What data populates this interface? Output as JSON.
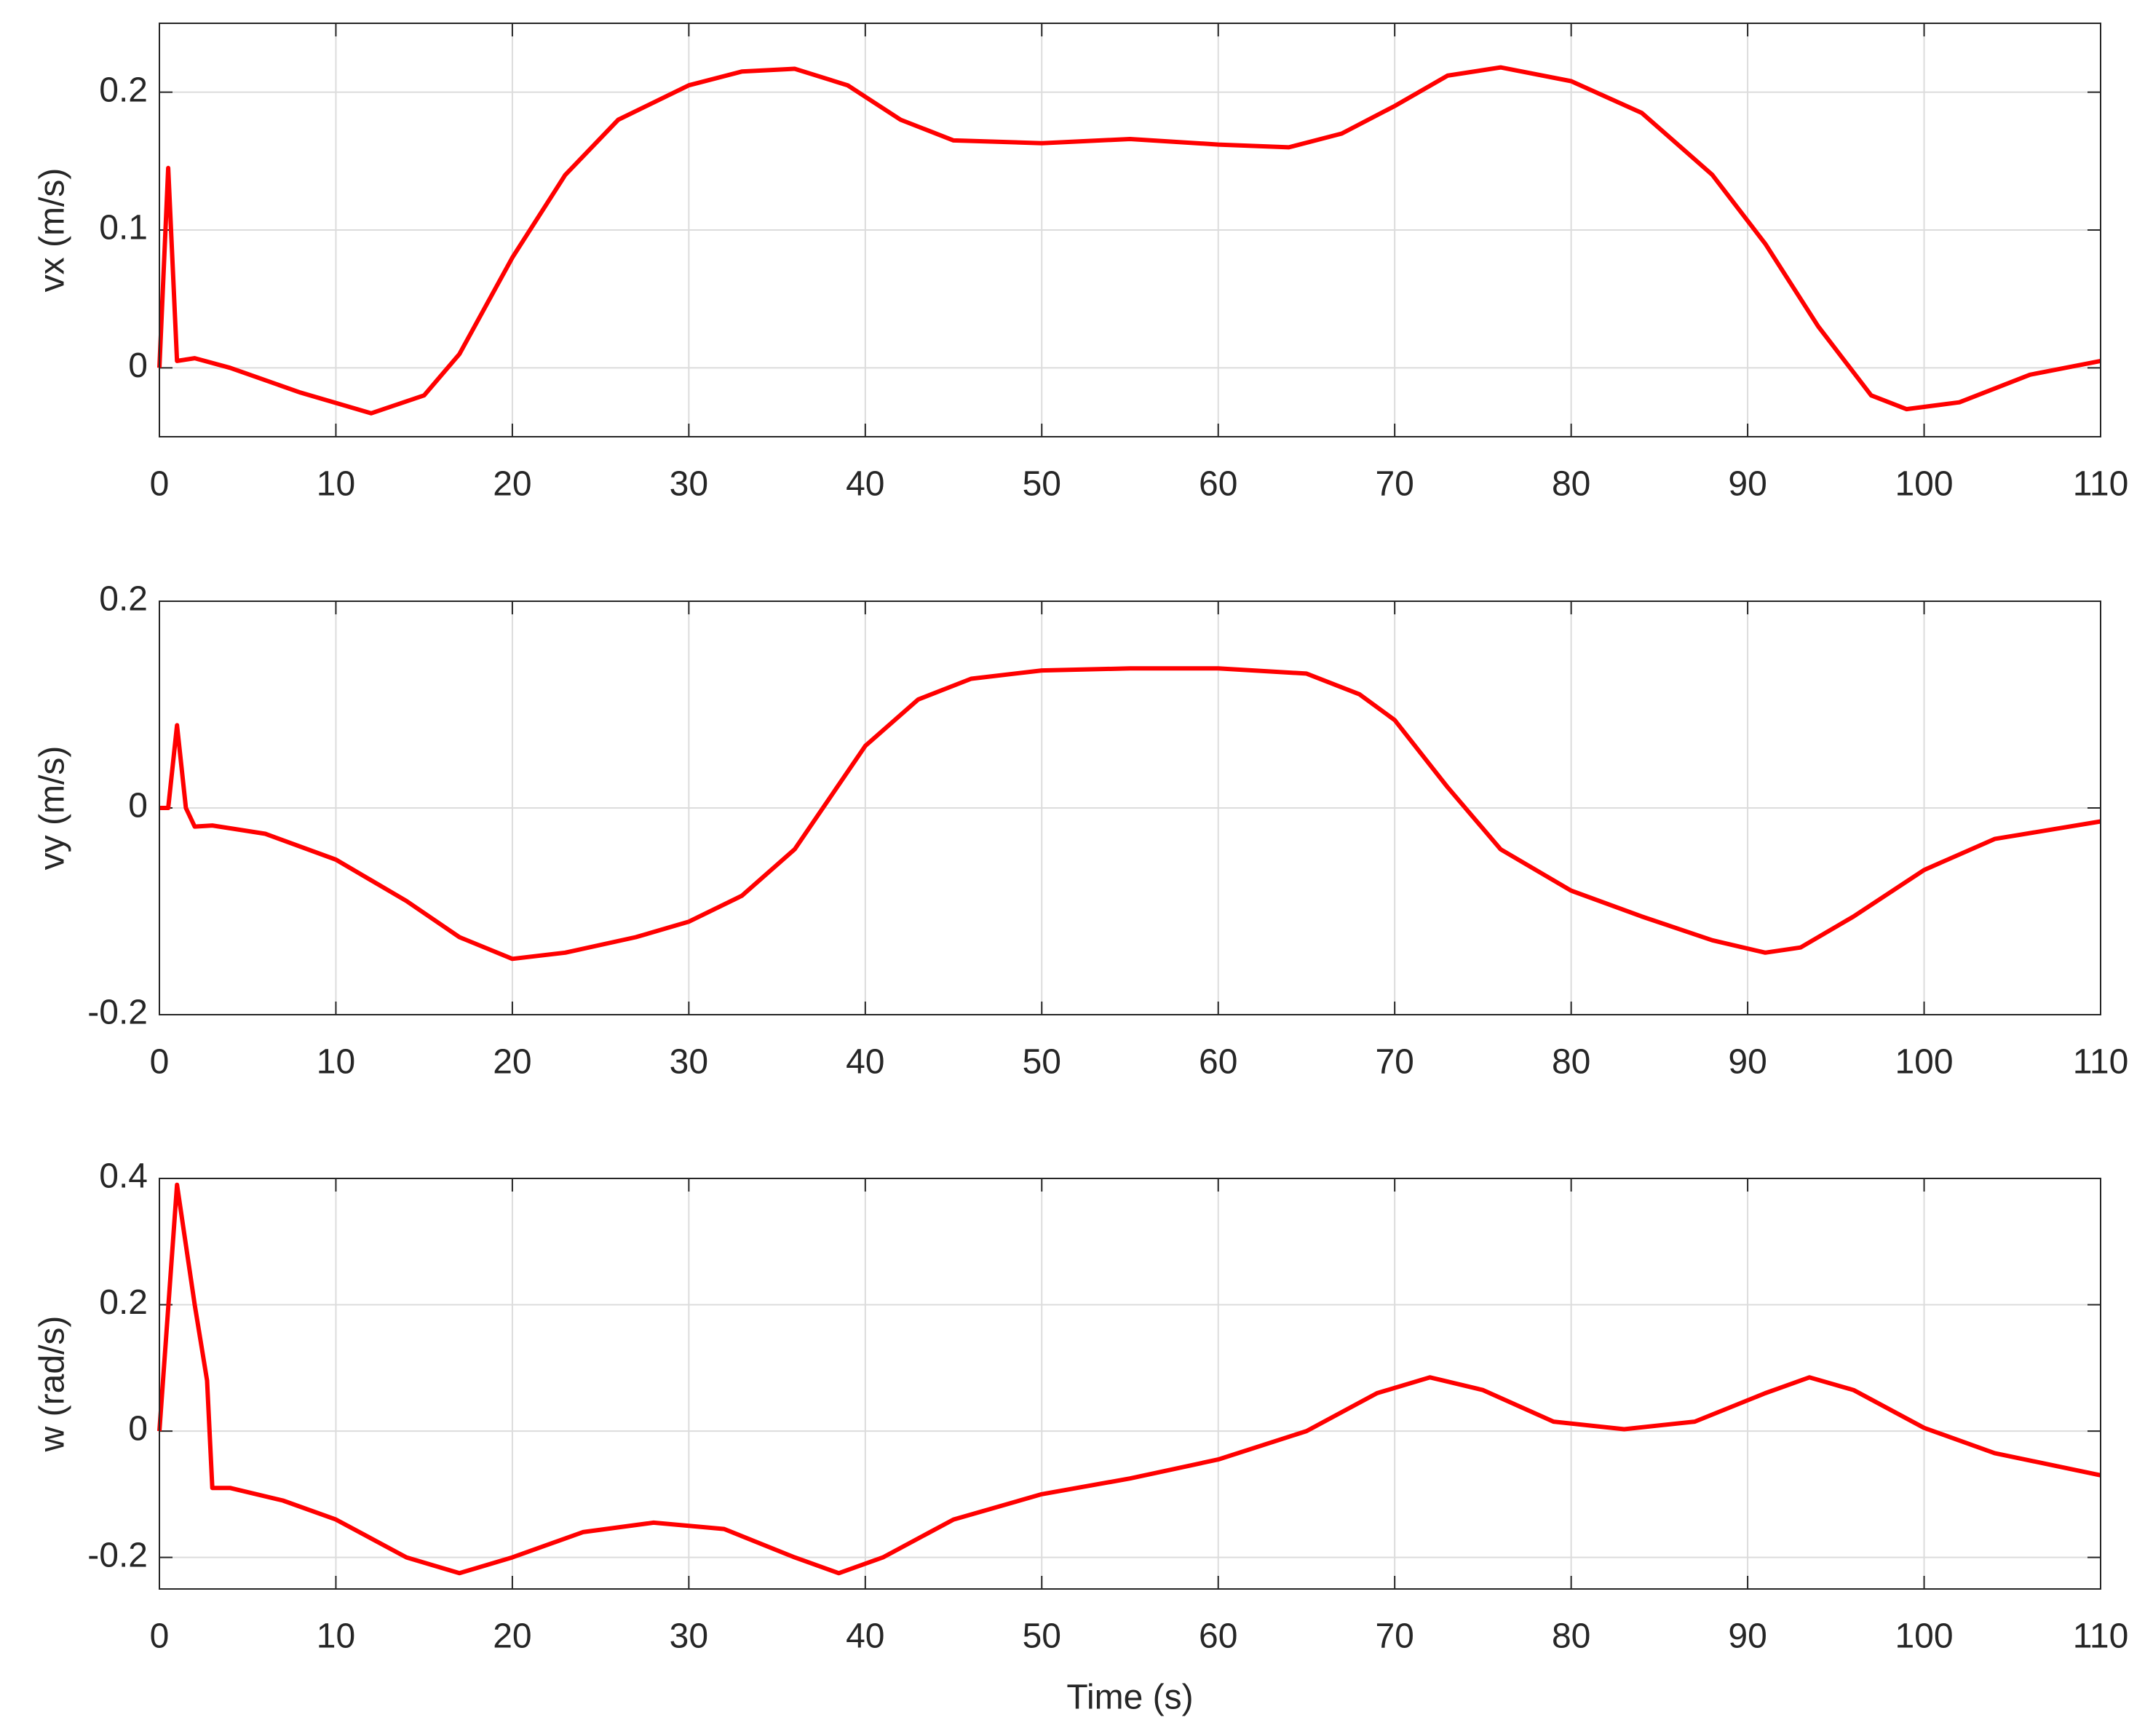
{
  "chart_data": [
    {
      "type": "line",
      "ylabel": "vx (m/s)",
      "grid": true,
      "xlim": [
        0,
        110
      ],
      "xticks": [
        0,
        10,
        20,
        30,
        40,
        50,
        60,
        70,
        80,
        90,
        100,
        110
      ],
      "ylim": [
        -0.05,
        0.25
      ],
      "yticks": [
        0,
        0.1,
        0.2
      ],
      "x": [
        0,
        0.5,
        1,
        2,
        4,
        8,
        12,
        15,
        17,
        20,
        23,
        26,
        30,
        33,
        36,
        39,
        42,
        45,
        50,
        55,
        60,
        64,
        67,
        70,
        73,
        76,
        80,
        84,
        88,
        91,
        94,
        97,
        99,
        102,
        106,
        110
      ],
      "series": [
        {
          "color": "#ff0000",
          "values": [
            0,
            0.145,
            0.005,
            0.007,
            0,
            -0.018,
            -0.033,
            -0.02,
            0.01,
            0.08,
            0.14,
            0.18,
            0.205,
            0.215,
            0.217,
            0.205,
            0.18,
            0.165,
            0.163,
            0.166,
            0.162,
            0.16,
            0.17,
            0.19,
            0.212,
            0.218,
            0.208,
            0.185,
            0.14,
            0.09,
            0.03,
            -0.02,
            -0.03,
            -0.025,
            -0.005,
            0.005
          ]
        }
      ]
    },
    {
      "type": "line",
      "ylabel": "vy (m/s)",
      "grid": true,
      "xlim": [
        0,
        110
      ],
      "xticks": [
        0,
        10,
        20,
        30,
        40,
        50,
        60,
        70,
        80,
        90,
        100,
        110
      ],
      "ylim": [
        -0.2,
        0.2
      ],
      "yticks": [
        -0.2,
        0,
        0.2
      ],
      "x": [
        0,
        0.5,
        1,
        1.5,
        2,
        3,
        6,
        10,
        14,
        17,
        20,
        23,
        27,
        30,
        33,
        36,
        38,
        40,
        43,
        46,
        50,
        55,
        60,
        65,
        68,
        70,
        73,
        76,
        80,
        84,
        88,
        91,
        93,
        96,
        100,
        104,
        110
      ],
      "series": [
        {
          "color": "#ff0000",
          "values": [
            0,
            0,
            0.08,
            0,
            -0.018,
            -0.017,
            -0.025,
            -0.05,
            -0.09,
            -0.125,
            -0.146,
            -0.14,
            -0.125,
            -0.11,
            -0.085,
            -0.04,
            0.01,
            0.06,
            0.105,
            0.125,
            0.133,
            0.135,
            0.135,
            0.13,
            0.11,
            0.085,
            0.02,
            -0.04,
            -0.08,
            -0.105,
            -0.128,
            -0.14,
            -0.135,
            -0.105,
            -0.06,
            -0.03,
            -0.013
          ]
        }
      ]
    },
    {
      "type": "line",
      "ylabel": "w (rad/s)",
      "xlabel": "Time (s)",
      "grid": true,
      "xlim": [
        0,
        110
      ],
      "xticks": [
        0,
        10,
        20,
        30,
        40,
        50,
        60,
        70,
        80,
        90,
        100,
        110
      ],
      "ylim": [
        -0.25,
        0.4
      ],
      "yticks": [
        -0.2,
        0,
        0.2,
        0.4
      ],
      "x": [
        0,
        1,
        2,
        2.7,
        3,
        4,
        7,
        10,
        14,
        17,
        20,
        24,
        28,
        32,
        36,
        38.5,
        41,
        45,
        50,
        55,
        60,
        65,
        69,
        72,
        75,
        79,
        83,
        87,
        91,
        93.5,
        96,
        100,
        104,
        110
      ],
      "series": [
        {
          "color": "#ff0000",
          "values": [
            0,
            0.39,
            0.2,
            0.08,
            -0.09,
            -0.09,
            -0.11,
            -0.14,
            -0.2,
            -0.225,
            -0.2,
            -0.16,
            -0.145,
            -0.155,
            -0.2,
            -0.225,
            -0.2,
            -0.14,
            -0.1,
            -0.075,
            -0.045,
            0,
            0.06,
            0.085,
            0.065,
            0.015,
            0.003,
            0.015,
            0.06,
            0.085,
            0.065,
            0.005,
            -0.035,
            -0.07
          ]
        }
      ]
    }
  ]
}
